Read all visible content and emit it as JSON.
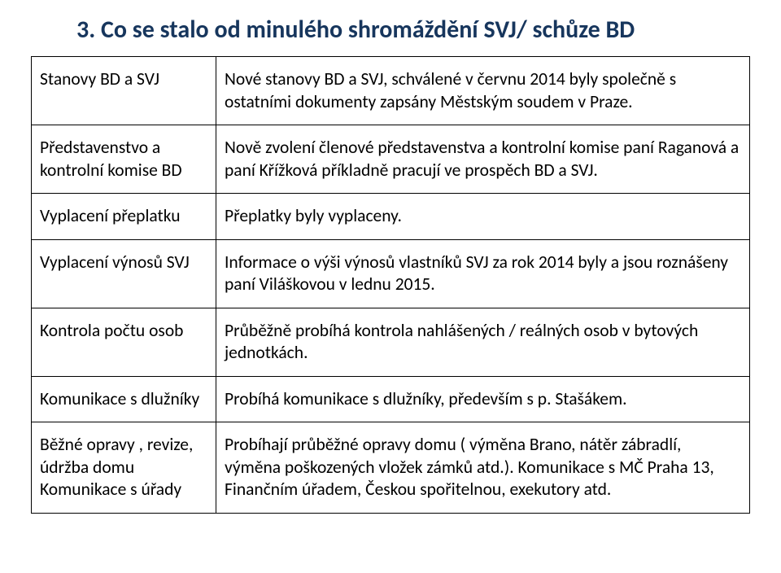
{
  "title": "3. Co se stalo od minulého shromáždění SVJ/ schůze BD",
  "rows": [
    {
      "label": "Stanovy BD a SVJ",
      "text": "Nové stanovy BD a SVJ, schválené v červnu 2014 byly společně s ostatními dokumenty zapsány Městským soudem v Praze."
    },
    {
      "label": "Představenstvo a kontrolní komise BD",
      "text": "Nově zvolení členové představenstva a kontrolní komise paní Raganová  a paní Křížková příkladně pracují ve prospěch BD a SVJ."
    },
    {
      "label": "Vyplacení přeplatku",
      "text": "Přeplatky byly vyplaceny."
    },
    {
      "label": "Vyplacení výnosů SVJ",
      "text": "Informace o výši výnosů vlastníků SVJ za rok 2014 byly a jsou roznášeny paní Viláškovou v lednu 2015."
    },
    {
      "label": "Kontrola počtu osob",
      "text": "Průběžně probíhá kontrola nahlášených / reálných osob v bytových jednotkách."
    },
    {
      "label": "Komunikace s dlužníky",
      "text": "Probíhá  komunikace s dlužníky, především s  p. Stašákem."
    },
    {
      "label": "Běžné opravy , revize, údržba domu Komunikace s úřady",
      "text": "Probíhají průběžné opravy domu ( výměna Brano, nátěr zábradlí, výměna poškozených vložek zámků atd.). Komunikace s MČ Praha 13, Finančním úřadem, Českou spořitelnou, exekutory atd."
    }
  ]
}
